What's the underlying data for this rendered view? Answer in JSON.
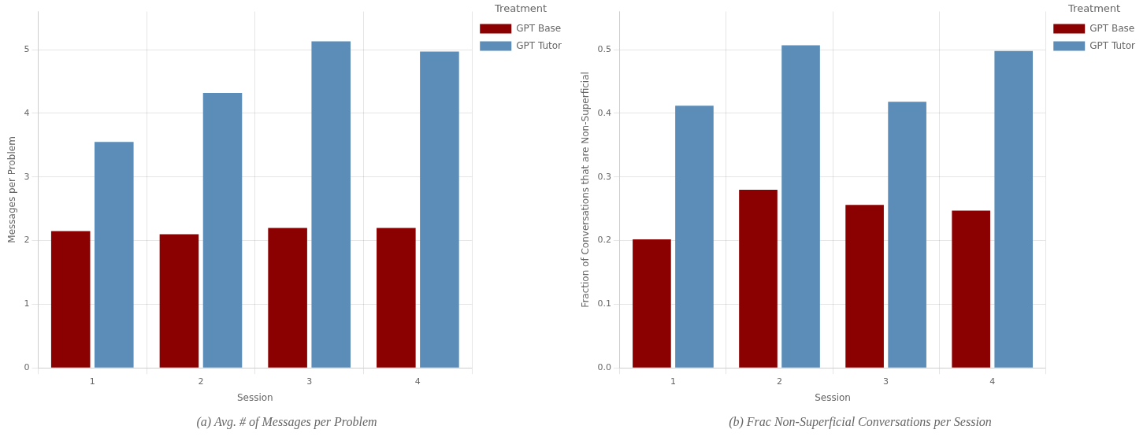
{
  "chart_data": [
    {
      "type": "bar",
      "title": "(a) Avg. # of Messages per Problem",
      "x_label": "Session",
      "y_label": "Messages per Problem",
      "categories": [
        1,
        2,
        3,
        4
      ],
      "series": [
        {
          "name": "GPT Base",
          "color": "#8B0000",
          "values": [
            2.15,
            2.1,
            2.2,
            2.2
          ]
        },
        {
          "name": "GPT Tutor",
          "color": "#5B8DB8",
          "values": [
            3.55,
            4.32,
            5.13,
            4.97
          ]
        }
      ],
      "legend_title": "Treatment",
      "legend": "right",
      "ylim": [
        0,
        5.6
      ],
      "yticks": [
        0,
        1,
        2,
        3,
        4,
        5
      ],
      "grid": true
    },
    {
      "type": "bar",
      "title": "(b) Frac Non-Superficial Conversations per Session",
      "x_label": "Session",
      "y_label": "Fraction of Conversations that are Non-Superficial",
      "categories": [
        1,
        2,
        3,
        4
      ],
      "series": [
        {
          "name": "GPT Base",
          "color": "#8B0000",
          "values": [
            0.202,
            0.28,
            0.256,
            0.247
          ]
        },
        {
          "name": "GPT Tutor",
          "color": "#5B8DB8",
          "values": [
            0.412,
            0.507,
            0.418,
            0.498
          ]
        }
      ],
      "legend_title": "Treatment",
      "legend": "right",
      "ylim": [
        0,
        0.56
      ],
      "yticks": [
        {
          "value": 0,
          "label": "0.0"
        },
        0.1,
        0.2,
        0.3,
        0.4,
        0.5
      ],
      "grid": true
    }
  ]
}
